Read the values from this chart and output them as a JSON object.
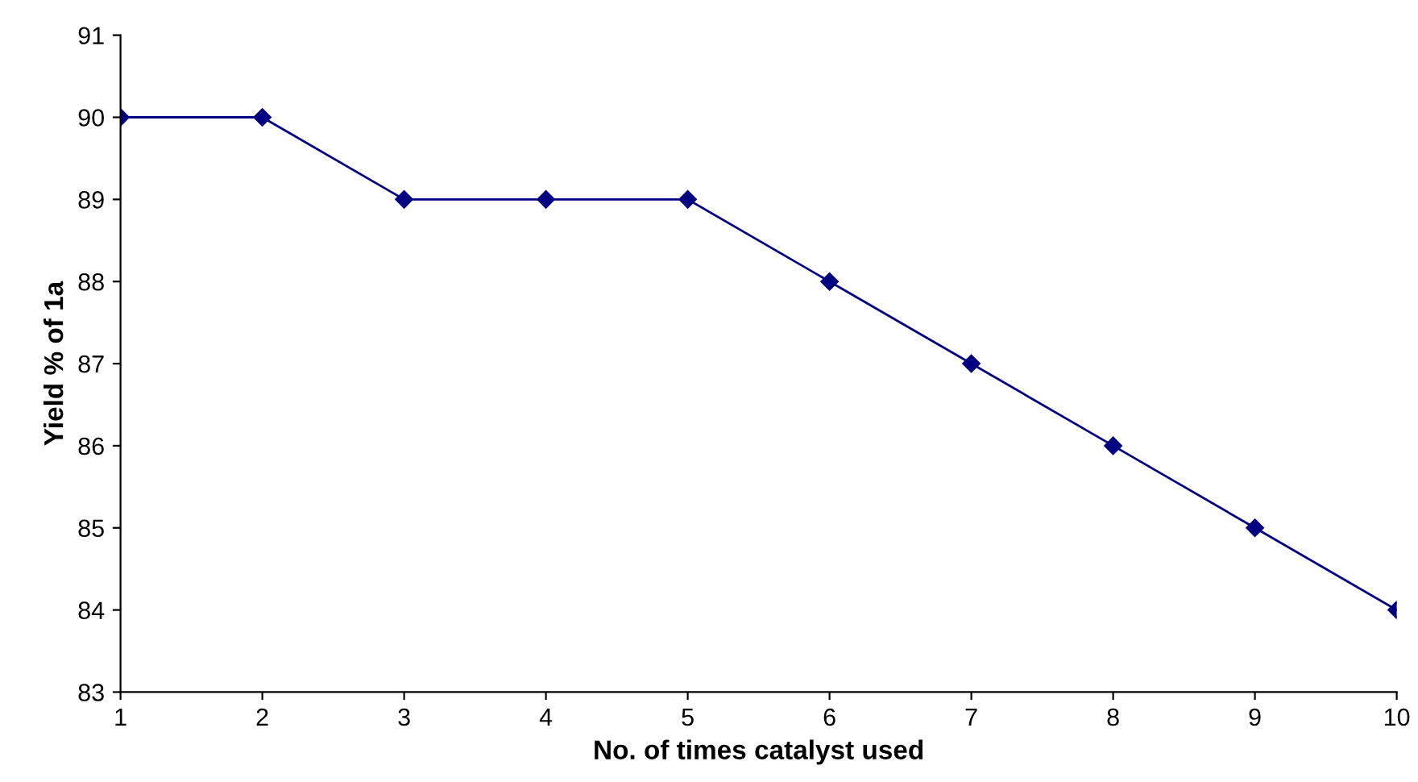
{
  "chart_data": {
    "type": "line",
    "xlabel": "No. of times catalyst used",
    "ylabel": "Yield % of 1a",
    "x": [
      1,
      2,
      3,
      4,
      5,
      6,
      7,
      8,
      9,
      10
    ],
    "series": [
      {
        "color": "#000080",
        "values": [
          90,
          90,
          89,
          89,
          89,
          88,
          87,
          86,
          85,
          84
        ]
      }
    ],
    "xlim": [
      1,
      10
    ],
    "xticks": [
      1,
      2,
      3,
      4,
      5,
      6,
      7,
      8,
      9,
      10
    ],
    "ylim": [
      83,
      91
    ],
    "yticks": [
      83,
      84,
      85,
      86,
      87,
      88,
      89,
      90,
      91
    ],
    "grid": false,
    "legend": false,
    "marker": "diamond",
    "line_style": "solid"
  }
}
